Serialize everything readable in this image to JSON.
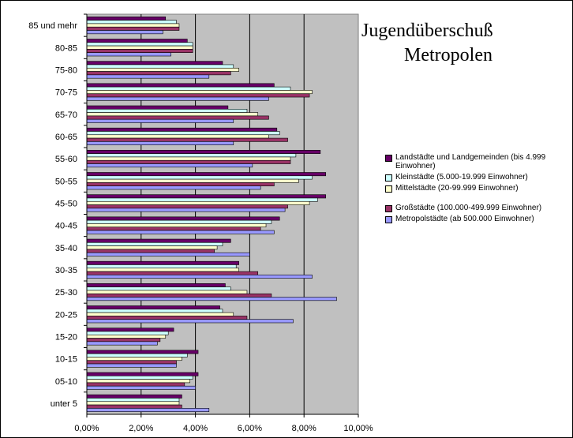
{
  "chart_data": {
    "type": "bar",
    "orientation": "horizontal",
    "title": [
      "Jugendüberschuß",
      "Metropolen"
    ],
    "categories": [
      "85 und mehr",
      "80-85",
      "75-80",
      "70-75",
      "65-70",
      "60-65",
      "55-60",
      "50-55",
      "45-50",
      "40-45",
      "35-40",
      "30-35",
      "25-30",
      "20-25",
      "15-20",
      "10-15",
      "05-10",
      "unter 5"
    ],
    "xlim": [
      0,
      10
    ],
    "x_ticks": [
      "0,00%",
      "2,00%",
      "4,00%",
      "6,00%",
      "8,00%",
      "10,00%"
    ],
    "grid": true,
    "legend_position": "right",
    "series": [
      {
        "name": "Landstädte und Landgemeinden (bis 4.999 Einwohner)",
        "color": "#660066",
        "values": [
          2.9,
          3.7,
          5.0,
          6.9,
          5.2,
          7.0,
          8.6,
          8.8,
          8.8,
          7.1,
          5.3,
          5.6,
          5.1,
          4.9,
          3.2,
          4.1,
          4.1,
          3.5
        ]
      },
      {
        "name": "Kleinstädte (5.000-19.999 Einwohner)",
        "color": "#CCFFFF",
        "values": [
          3.3,
          3.9,
          5.4,
          7.5,
          5.9,
          7.1,
          7.7,
          8.3,
          8.5,
          6.8,
          5.0,
          5.5,
          5.3,
          5.0,
          3.0,
          3.7,
          3.9,
          3.4
        ]
      },
      {
        "name": "Mittelstädte (20-99.999 Einwohner)",
        "color": "#FFFFCC",
        "values": [
          3.4,
          3.9,
          5.6,
          8.3,
          6.3,
          6.7,
          7.5,
          7.8,
          8.2,
          6.6,
          4.8,
          5.6,
          5.9,
          5.4,
          2.9,
          3.5,
          3.8,
          3.4
        ]
      },
      {
        "name": "Großstädte (100.000-499.999 Einwohner)",
        "color": "#993366",
        "values": [
          3.4,
          3.9,
          5.3,
          8.2,
          6.7,
          7.4,
          7.5,
          6.9,
          7.4,
          6.4,
          4.7,
          6.3,
          6.8,
          5.9,
          2.7,
          3.3,
          3.6,
          3.5
        ]
      },
      {
        "name": "Metropolstädte (ab 500.000 Einwohner)",
        "color": "#9999FF",
        "values": [
          2.8,
          3.1,
          4.5,
          6.7,
          5.4,
          5.4,
          6.1,
          6.4,
          7.3,
          6.9,
          6.0,
          8.3,
          9.2,
          7.6,
          2.6,
          3.3,
          4.0,
          4.5
        ]
      }
    ]
  }
}
